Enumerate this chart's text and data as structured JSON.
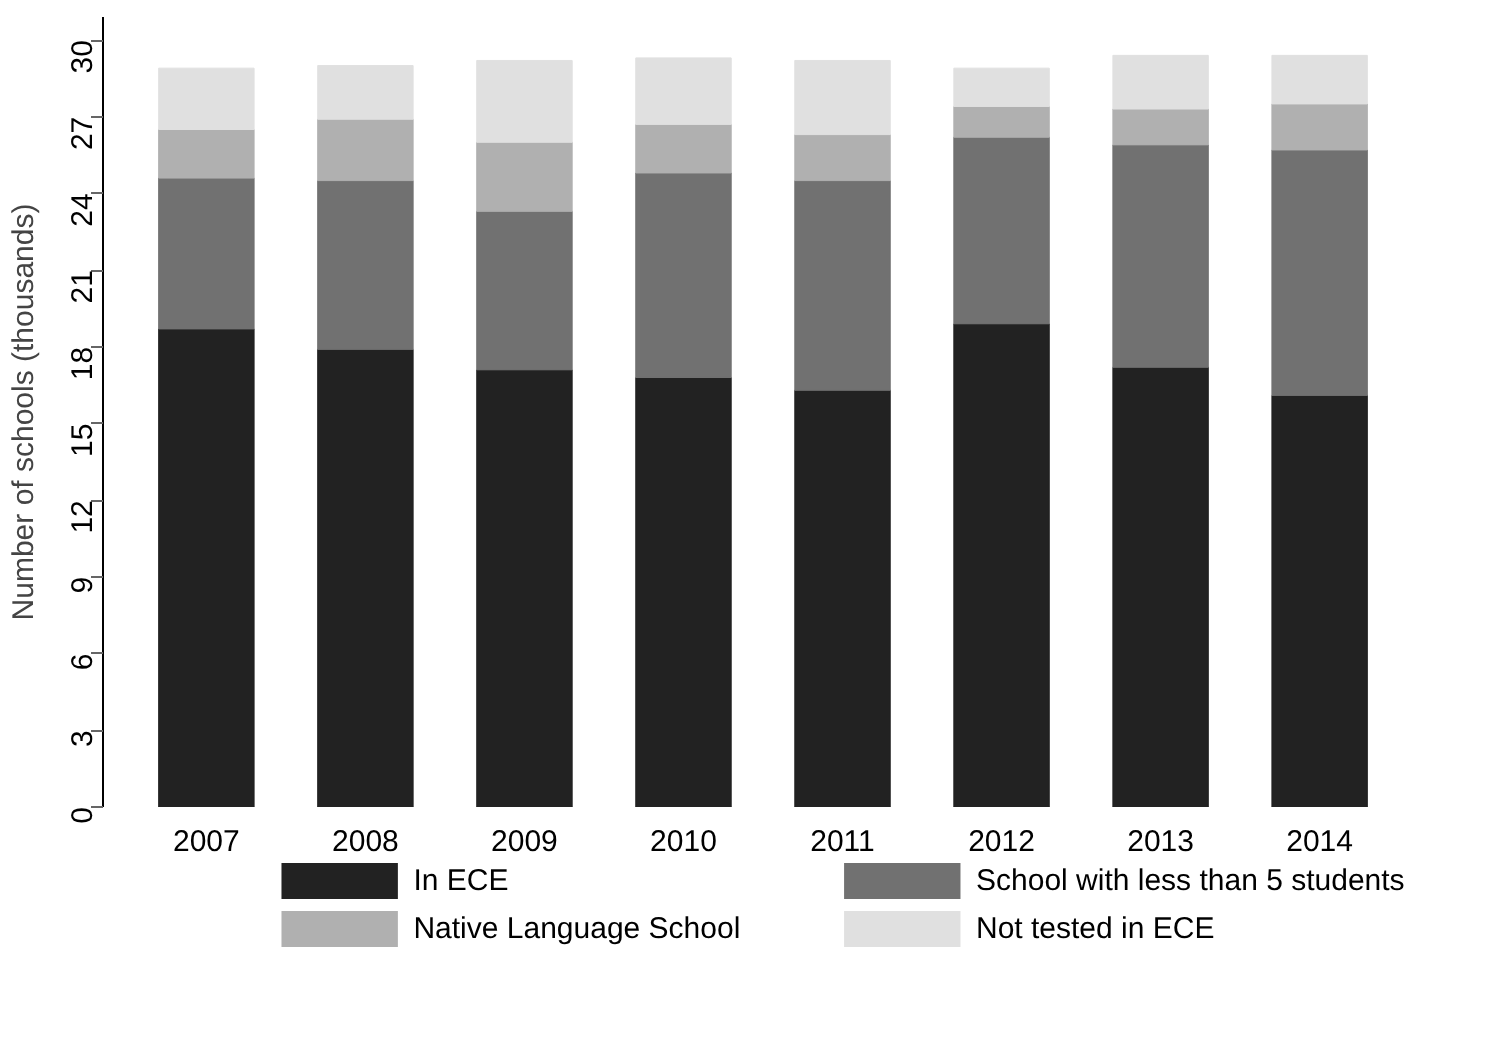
{
  "chart_data": {
    "type": "bar",
    "stacked": true,
    "ylabel": "Number of schools (thousands)",
    "categories": [
      "2007",
      "2008",
      "2009",
      "2010",
      "2011",
      "2012",
      "2013",
      "2014"
    ],
    "series": [
      {
        "name": "In ECE",
        "color": "#222222",
        "values": [
          18.7,
          17.9,
          17.1,
          16.8,
          16.3,
          18.9,
          17.2,
          16.1
        ]
      },
      {
        "name": "School with less than 5 students",
        "color": "#717171",
        "values": [
          5.9,
          6.6,
          6.2,
          8.0,
          8.2,
          7.3,
          8.7,
          9.6
        ]
      },
      {
        "name": "Native Language School",
        "color": "#b0b0b0",
        "values": [
          1.9,
          2.4,
          2.7,
          1.9,
          1.8,
          1.2,
          1.4,
          1.8
        ]
      },
      {
        "name": "Not tested in ECE",
        "color": "#e0e0e0",
        "values": [
          2.4,
          2.1,
          3.2,
          2.6,
          2.9,
          1.5,
          2.1,
          1.9
        ]
      }
    ],
    "ylim": [
      0,
      30.9
    ],
    "yticks": [
      0,
      3,
      6,
      9,
      12,
      15,
      18,
      21,
      24,
      27,
      30
    ],
    "grid": false,
    "legend": "bottom"
  }
}
